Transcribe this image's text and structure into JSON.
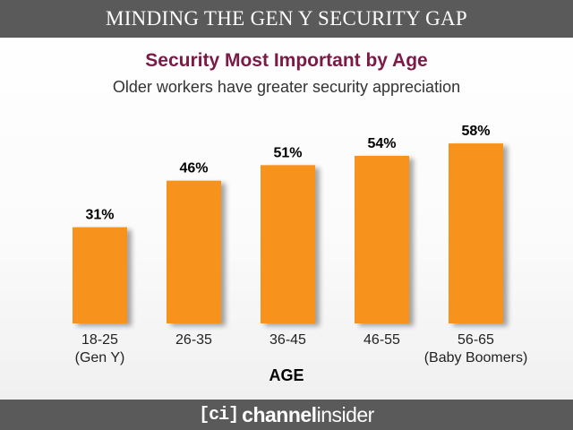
{
  "banner": {
    "title": "MINDING THE GEN Y SECURITY GAP"
  },
  "footer": {
    "logo_mark": "[ci]",
    "logo_word_bold": "channel",
    "logo_word_light": "insider"
  },
  "colors": {
    "bar": "#f7931e",
    "title": "#7b1a47",
    "banner": "#5a5a5a"
  },
  "chart_data": {
    "type": "bar",
    "title": "Security Most Important by Age",
    "subtitle": "Older workers have greater security appreciation",
    "xlabel": "AGE",
    "ylabel": "",
    "ylim": [
      0,
      100
    ],
    "grid": false,
    "categories": [
      [
        "18-25",
        "(Gen Y)"
      ],
      [
        "26-35"
      ],
      [
        "36-45"
      ],
      [
        "46-55"
      ],
      [
        "56-65",
        "(Baby Boomers)"
      ]
    ],
    "values": [
      31,
      46,
      51,
      54,
      58
    ],
    "value_labels": [
      "31%",
      "46%",
      "51%",
      "54%",
      "58%"
    ]
  }
}
